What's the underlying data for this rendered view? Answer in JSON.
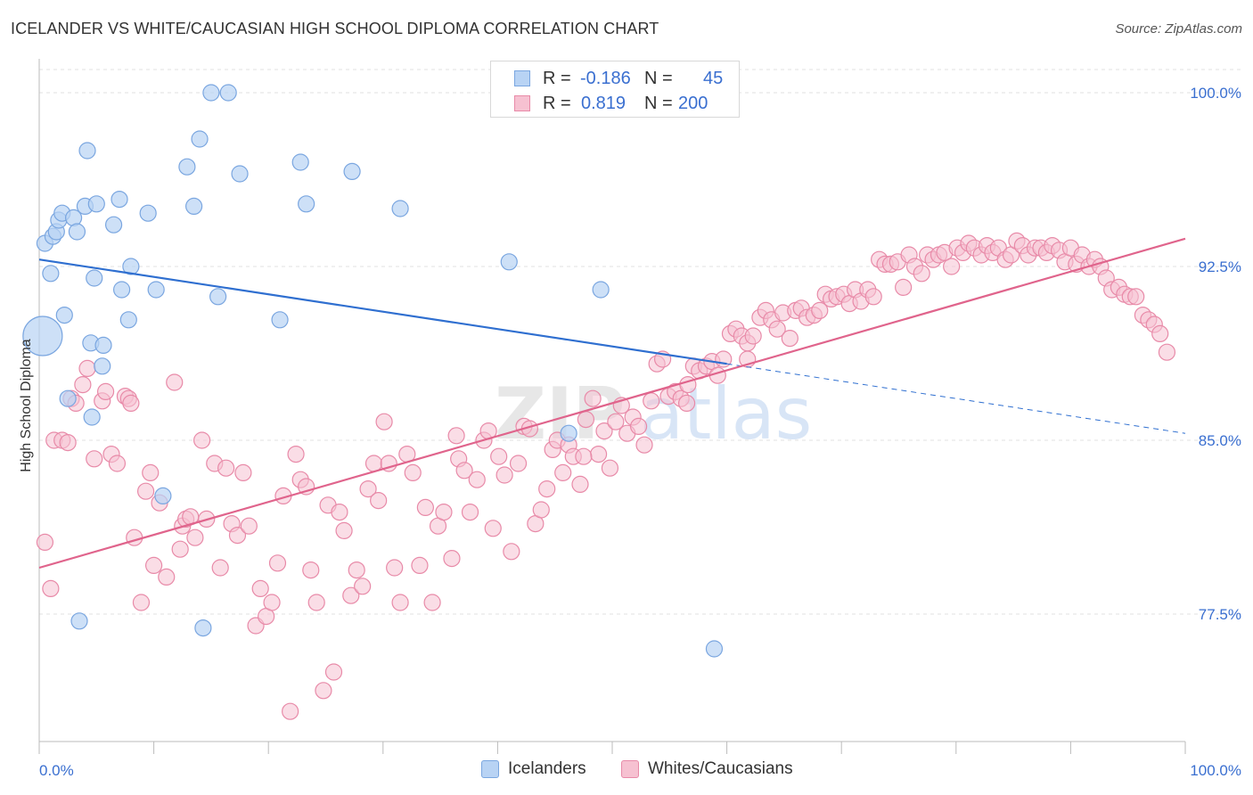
{
  "title": "ICELANDER VS WHITE/CAUCASIAN HIGH SCHOOL DIPLOMA CORRELATION CHART",
  "source": "Source: ZipAtlas.com",
  "watermark": "ZIPatlas",
  "legend": {
    "rows": [
      {
        "r_label": "R =",
        "r_value": "-0.186",
        "n_label": "N =",
        "n_value": "45"
      },
      {
        "r_label": "R =",
        "r_value": "0.819",
        "n_label": "N =",
        "n_value": "200"
      }
    ]
  },
  "bottom_legend": [
    "Icelanders",
    "Whites/Caucasians"
  ],
  "colors": {
    "blue_fill": "#b8d3f4",
    "blue_stroke": "#7aa6e0",
    "blue_line": "#2f6fd0",
    "pink_fill": "#f6c1d1",
    "pink_stroke": "#e88aa8",
    "pink_line": "#e0648c",
    "tick_label": "#3a6fd0",
    "grid": "#e2e2e2"
  },
  "chart_data": {
    "type": "scatter",
    "title": "ICELANDER VS WHITE/CAUCASIAN HIGH SCHOOL DIPLOMA CORRELATION CHART",
    "xlabel": "",
    "ylabel": "High School Diploma",
    "xlim": [
      0,
      100
    ],
    "ylim": [
      72.0,
      101.0
    ],
    "x_tick_labels": [
      "0.0%",
      "100.0%"
    ],
    "y_ticks": [
      77.5,
      85.0,
      92.5,
      100.0
    ],
    "y_tick_labels": [
      "77.5%",
      "85.0%",
      "92.5%",
      "100.0%"
    ],
    "grid": "horizontal dashed",
    "legend_position": "top-center",
    "series": [
      {
        "name": "Icelanders",
        "R": -0.186,
        "N": 45,
        "trend": {
          "x0": 0,
          "y0": 92.8,
          "x1": 100,
          "y1": 85.3,
          "solid_until_x": 60
        },
        "points": [
          [
            0.3,
            89.5
          ],
          [
            0.5,
            93.5
          ],
          [
            1.0,
            92.2
          ],
          [
            1.2,
            93.8
          ],
          [
            1.5,
            94.0
          ],
          [
            1.7,
            94.5
          ],
          [
            2.0,
            94.8
          ],
          [
            2.2,
            90.4
          ],
          [
            2.5,
            86.8
          ],
          [
            3.0,
            94.6
          ],
          [
            3.3,
            94.0
          ],
          [
            3.5,
            77.2
          ],
          [
            4.0,
            95.1
          ],
          [
            4.2,
            97.5
          ],
          [
            4.5,
            89.2
          ],
          [
            4.6,
            86.0
          ],
          [
            4.8,
            92.0
          ],
          [
            5.0,
            95.2
          ],
          [
            5.5,
            88.2
          ],
          [
            5.6,
            89.1
          ],
          [
            6.5,
            94.3
          ],
          [
            7.0,
            95.4
          ],
          [
            7.2,
            91.5
          ],
          [
            7.8,
            90.2
          ],
          [
            8.0,
            92.5
          ],
          [
            9.5,
            94.8
          ],
          [
            10.2,
            91.5
          ],
          [
            10.8,
            82.6
          ],
          [
            12.9,
            96.8
          ],
          [
            13.5,
            95.1
          ],
          [
            14.0,
            98.0
          ],
          [
            14.3,
            76.9
          ],
          [
            15.0,
            100.0
          ],
          [
            15.6,
            91.2
          ],
          [
            16.5,
            100.0
          ],
          [
            17.5,
            96.5
          ],
          [
            21.0,
            90.2
          ],
          [
            22.8,
            97.0
          ],
          [
            23.3,
            95.2
          ],
          [
            27.3,
            96.6
          ],
          [
            31.5,
            95.0
          ],
          [
            41.0,
            92.7
          ],
          [
            46.2,
            85.3
          ],
          [
            49.0,
            91.5
          ],
          [
            58.9,
            76.0
          ]
        ]
      },
      {
        "name": "Whites/Caucasians",
        "R": 0.819,
        "N": 200,
        "trend": {
          "x0": 0,
          "y0": 79.5,
          "x1": 100,
          "y1": 93.7
        },
        "points": [
          [
            0.5,
            80.6
          ],
          [
            1.0,
            78.6
          ],
          [
            1.3,
            85.0
          ],
          [
            2.0,
            85.0
          ],
          [
            2.5,
            84.9
          ],
          [
            2.8,
            86.8
          ],
          [
            3.2,
            86.6
          ],
          [
            3.8,
            87.4
          ],
          [
            4.2,
            88.1
          ],
          [
            4.8,
            84.2
          ],
          [
            5.5,
            86.7
          ],
          [
            5.8,
            87.1
          ],
          [
            6.3,
            84.4
          ],
          [
            6.8,
            84.0
          ],
          [
            7.5,
            86.9
          ],
          [
            7.8,
            86.8
          ],
          [
            8.0,
            86.6
          ],
          [
            8.3,
            80.8
          ],
          [
            8.9,
            78.0
          ],
          [
            9.3,
            82.8
          ],
          [
            9.7,
            83.6
          ],
          [
            10.0,
            79.6
          ],
          [
            10.5,
            82.3
          ],
          [
            11.1,
            79.1
          ],
          [
            11.8,
            87.5
          ],
          [
            12.3,
            80.3
          ],
          [
            12.5,
            81.3
          ],
          [
            12.8,
            81.6
          ],
          [
            13.2,
            81.7
          ],
          [
            13.6,
            80.8
          ],
          [
            14.2,
            85.0
          ],
          [
            14.6,
            81.6
          ],
          [
            15.3,
            84.0
          ],
          [
            15.8,
            79.5
          ],
          [
            16.3,
            83.8
          ],
          [
            16.8,
            81.4
          ],
          [
            17.3,
            80.9
          ],
          [
            17.8,
            83.6
          ],
          [
            18.3,
            81.3
          ],
          [
            18.9,
            77.0
          ],
          [
            19.3,
            78.6
          ],
          [
            19.8,
            77.4
          ],
          [
            20.3,
            78.0
          ],
          [
            20.8,
            79.7
          ],
          [
            21.3,
            82.6
          ],
          [
            21.9,
            73.3
          ],
          [
            22.4,
            84.4
          ],
          [
            22.8,
            83.3
          ],
          [
            23.3,
            83.0
          ],
          [
            23.7,
            79.4
          ],
          [
            24.2,
            78.0
          ],
          [
            24.8,
            74.2
          ],
          [
            25.2,
            82.2
          ],
          [
            25.7,
            75.0
          ],
          [
            26.2,
            81.9
          ],
          [
            26.6,
            81.1
          ],
          [
            27.2,
            78.3
          ],
          [
            27.7,
            79.4
          ],
          [
            28.2,
            78.7
          ],
          [
            28.7,
            82.9
          ],
          [
            29.2,
            84.0
          ],
          [
            29.6,
            82.4
          ],
          [
            30.1,
            85.8
          ],
          [
            30.5,
            84.0
          ],
          [
            31.0,
            79.5
          ],
          [
            31.5,
            78.0
          ],
          [
            32.1,
            84.4
          ],
          [
            32.6,
            83.6
          ],
          [
            33.2,
            79.6
          ],
          [
            33.7,
            82.1
          ],
          [
            34.3,
            78.0
          ],
          [
            34.8,
            81.3
          ],
          [
            35.3,
            81.9
          ],
          [
            36.0,
            79.9
          ],
          [
            36.6,
            84.2
          ],
          [
            37.1,
            83.7
          ],
          [
            37.6,
            81.9
          ],
          [
            38.2,
            83.3
          ],
          [
            38.8,
            85.0
          ],
          [
            39.2,
            85.4
          ],
          [
            39.6,
            81.2
          ],
          [
            40.1,
            84.3
          ],
          [
            40.6,
            83.5
          ],
          [
            41.2,
            80.2
          ],
          [
            41.8,
            84.0
          ],
          [
            42.3,
            85.6
          ],
          [
            42.8,
            85.5
          ],
          [
            43.3,
            81.4
          ],
          [
            43.8,
            82.0
          ],
          [
            44.3,
            82.9
          ],
          [
            44.8,
            84.6
          ],
          [
            45.2,
            85.0
          ],
          [
            45.7,
            83.6
          ],
          [
            46.2,
            84.8
          ],
          [
            46.6,
            84.3
          ],
          [
            47.2,
            83.1
          ],
          [
            47.7,
            85.9
          ],
          [
            48.3,
            86.8
          ],
          [
            48.8,
            84.4
          ],
          [
            49.3,
            85.4
          ],
          [
            49.8,
            83.8
          ],
          [
            50.3,
            85.8
          ],
          [
            50.8,
            86.5
          ],
          [
            51.3,
            85.3
          ],
          [
            51.8,
            86.0
          ],
          [
            52.3,
            85.6
          ],
          [
            52.8,
            84.8
          ],
          [
            53.4,
            86.7
          ],
          [
            53.9,
            88.3
          ],
          [
            54.4,
            88.5
          ],
          [
            54.9,
            86.9
          ],
          [
            55.5,
            87.1
          ],
          [
            56.0,
            86.8
          ],
          [
            56.6,
            87.4
          ],
          [
            57.1,
            88.2
          ],
          [
            57.6,
            88.0
          ],
          [
            58.2,
            88.2
          ],
          [
            58.7,
            88.4
          ],
          [
            59.2,
            87.8
          ],
          [
            59.7,
            88.5
          ],
          [
            60.3,
            89.6
          ],
          [
            60.8,
            89.8
          ],
          [
            61.3,
            89.5
          ],
          [
            61.8,
            89.2
          ],
          [
            62.3,
            89.5
          ],
          [
            62.9,
            90.3
          ],
          [
            63.4,
            90.6
          ],
          [
            63.9,
            90.2
          ],
          [
            64.4,
            89.8
          ],
          [
            64.9,
            90.5
          ],
          [
            65.5,
            89.4
          ],
          [
            66.0,
            90.6
          ],
          [
            66.5,
            90.7
          ],
          [
            67.0,
            90.3
          ],
          [
            67.6,
            90.4
          ],
          [
            68.1,
            90.6
          ],
          [
            68.6,
            91.3
          ],
          [
            69.1,
            91.1
          ],
          [
            69.6,
            91.2
          ],
          [
            70.2,
            91.3
          ],
          [
            70.7,
            90.9
          ],
          [
            71.2,
            91.5
          ],
          [
            71.7,
            91.0
          ],
          [
            72.3,
            91.5
          ],
          [
            72.8,
            91.2
          ],
          [
            73.3,
            92.8
          ],
          [
            73.8,
            92.6
          ],
          [
            74.3,
            92.6
          ],
          [
            74.9,
            92.7
          ],
          [
            75.4,
            91.6
          ],
          [
            75.9,
            93.0
          ],
          [
            76.4,
            92.5
          ],
          [
            77.0,
            92.2
          ],
          [
            77.5,
            93.0
          ],
          [
            78.0,
            92.8
          ],
          [
            78.5,
            93.0
          ],
          [
            79.0,
            93.1
          ],
          [
            79.6,
            92.5
          ],
          [
            80.1,
            93.3
          ],
          [
            80.6,
            93.1
          ],
          [
            81.1,
            93.5
          ],
          [
            81.6,
            93.3
          ],
          [
            82.2,
            93.0
          ],
          [
            82.7,
            93.4
          ],
          [
            83.2,
            93.1
          ],
          [
            83.7,
            93.3
          ],
          [
            84.3,
            92.8
          ],
          [
            84.8,
            93.0
          ],
          [
            85.3,
            93.6
          ],
          [
            85.8,
            93.4
          ],
          [
            86.3,
            93.0
          ],
          [
            86.9,
            93.3
          ],
          [
            87.4,
            93.3
          ],
          [
            87.9,
            93.1
          ],
          [
            88.4,
            93.4
          ],
          [
            89.0,
            93.2
          ],
          [
            89.5,
            92.7
          ],
          [
            90.0,
            93.3
          ],
          [
            90.5,
            92.6
          ],
          [
            91.0,
            93.0
          ],
          [
            91.6,
            92.5
          ],
          [
            92.1,
            92.8
          ],
          [
            92.6,
            92.5
          ],
          [
            93.1,
            92.0
          ],
          [
            93.6,
            91.5
          ],
          [
            94.2,
            91.6
          ],
          [
            94.7,
            91.3
          ],
          [
            95.2,
            91.2
          ],
          [
            95.7,
            91.2
          ],
          [
            96.3,
            90.4
          ],
          [
            96.8,
            90.2
          ],
          [
            97.3,
            90.0
          ],
          [
            97.8,
            89.6
          ],
          [
            98.4,
            88.8
          ],
          [
            61.8,
            88.5
          ],
          [
            56.5,
            86.6
          ],
          [
            47.5,
            84.3
          ],
          [
            36.4,
            85.2
          ]
        ]
      }
    ]
  }
}
